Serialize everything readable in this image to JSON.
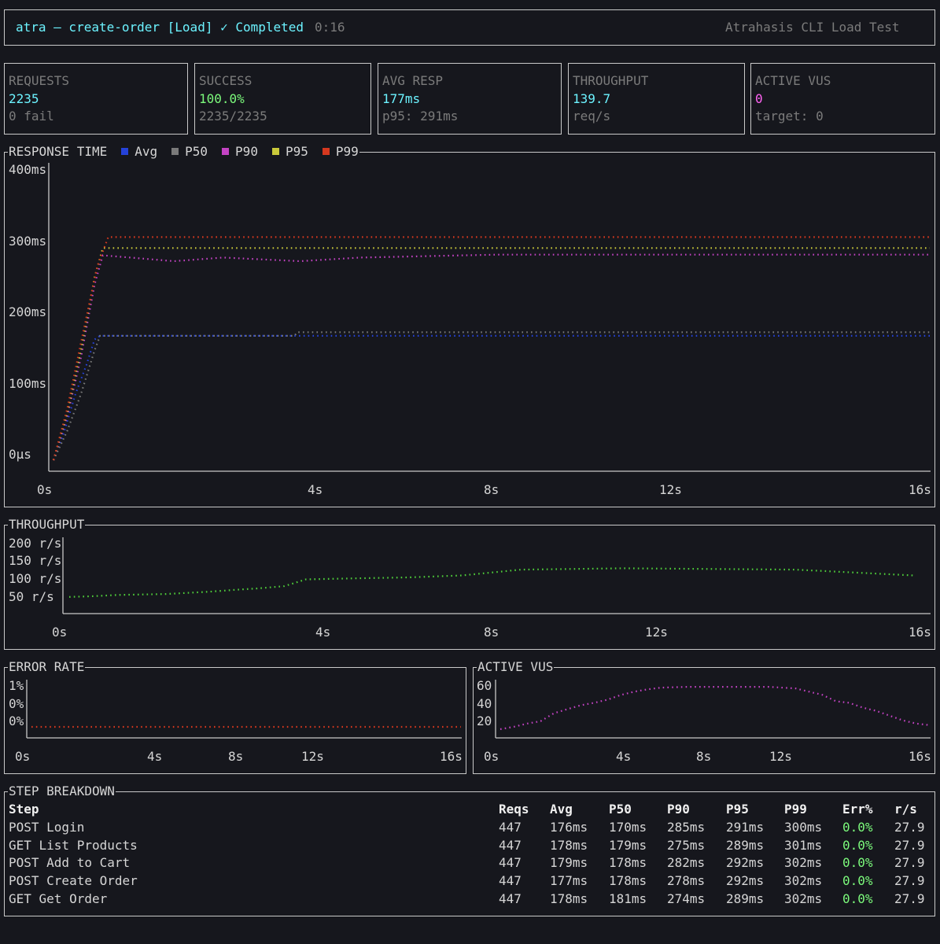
{
  "header": {
    "title": "atra — create-order [Load] ✓ Completed",
    "elapsed": "0:16",
    "app_name": "Atrahasis CLI Load Test"
  },
  "stats": [
    {
      "label": "REQUESTS",
      "value": "2235",
      "sub": "0 fail",
      "color": "#6cf3ff"
    },
    {
      "label": "SUCCESS",
      "value": "100.0%",
      "sub": "2235/2235",
      "color": "#7cfb7c"
    },
    {
      "label": "AVG RESP",
      "value": "177ms",
      "sub": "p95: 291ms",
      "color": "#6cf3ff"
    },
    {
      "label": "THROUGHPUT",
      "value": "139.7",
      "sub": "req/s",
      "color": "#6cf3ff"
    },
    {
      "label": "ACTIVE VUS",
      "value": "0",
      "sub": "target: 0",
      "color": "#ff63f2"
    }
  ],
  "response_time": {
    "title": "RESPONSE TIME",
    "legend": [
      {
        "name": "Avg",
        "color": "#2542d8"
      },
      {
        "name": "P50",
        "color": "#7a7a7a"
      },
      {
        "name": "P90",
        "color": "#c443c4"
      },
      {
        "name": "P95",
        "color": "#c9c93a"
      },
      {
        "name": "P99",
        "color": "#d5381f"
      }
    ],
    "yticks": [
      "400ms",
      "300ms",
      "200ms",
      "100ms",
      "0µs"
    ],
    "xticks": [
      "0s",
      "4s",
      "8s",
      "12s",
      "16s"
    ]
  },
  "throughput": {
    "title": "THROUGHPUT",
    "yticks": [
      "200 r/s",
      "150 r/s",
      "100 r/s",
      "50 r/s"
    ],
    "xticks": [
      "0s",
      "4s",
      "8s",
      "12s",
      "16s"
    ]
  },
  "error_rate": {
    "title": "ERROR RATE",
    "yticks": [
      "1%",
      "0%",
      "0%"
    ],
    "xticks": [
      "0s",
      "4s",
      "8s",
      "12s",
      "16s"
    ]
  },
  "active_vus": {
    "title": "ACTIVE VUS",
    "yticks": [
      "60",
      "40",
      "20"
    ],
    "xticks": [
      "0s",
      "4s",
      "8s",
      "12s",
      "16s"
    ]
  },
  "chart_data": [
    {
      "type": "line",
      "title": "RESPONSE TIME",
      "xlabel": "",
      "ylabel": "",
      "xlim": [
        0,
        16
      ],
      "ylim": [
        0,
        400
      ],
      "series": [
        {
          "name": "Avg",
          "color": "#2542d8",
          "points": [
            [
              0,
              0
            ],
            [
              0.2,
              40
            ],
            [
              0.4,
              90
            ],
            [
              0.6,
              130
            ],
            [
              0.75,
              165
            ],
            [
              0.85,
              170
            ],
            [
              4,
              170
            ],
            [
              8,
              170
            ],
            [
              16,
              170
            ]
          ]
        },
        {
          "name": "P50",
          "color": "#7a7a7a",
          "points": [
            [
              0,
              0
            ],
            [
              0.25,
              40
            ],
            [
              0.5,
              90
            ],
            [
              0.75,
              150
            ],
            [
              0.85,
              170
            ],
            [
              4.4,
              170
            ],
            [
              4.45,
              175
            ],
            [
              16,
              175
            ]
          ]
        },
        {
          "name": "P90",
          "color": "#c443c4",
          "points": [
            [
              0,
              0
            ],
            [
              0.25,
              60
            ],
            [
              0.5,
              140
            ],
            [
              0.75,
              240
            ],
            [
              0.9,
              280
            ],
            [
              1.4,
              277
            ],
            [
              2.2,
              272
            ],
            [
              3.1,
              277
            ],
            [
              4.5,
              272
            ],
            [
              5.6,
              277
            ],
            [
              8.1,
              281
            ],
            [
              16,
              281
            ]
          ]
        },
        {
          "name": "P95",
          "color": "#c9c93a",
          "points": [
            [
              0,
              0
            ],
            [
              0.25,
              65
            ],
            [
              0.5,
              150
            ],
            [
              0.75,
              250
            ],
            [
              0.9,
              290
            ],
            [
              16,
              290
            ]
          ]
        },
        {
          "name": "P99",
          "color": "#d5381f",
          "points": [
            [
              0,
              0
            ],
            [
              0.25,
              70
            ],
            [
              0.5,
              160
            ],
            [
              0.8,
              265
            ],
            [
              1.0,
              305
            ],
            [
              16,
              305
            ]
          ]
        }
      ]
    },
    {
      "type": "line",
      "title": "THROUGHPUT",
      "xlim": [
        0,
        16
      ],
      "ylim": [
        0,
        220
      ],
      "series": [
        {
          "name": "",
          "color": "#4fcf3a",
          "points": [
            [
              0,
              44
            ],
            [
              0.4,
              46
            ],
            [
              0.9,
              50
            ],
            [
              1.8,
              53
            ],
            [
              2.6,
              60
            ],
            [
              3.1,
              66
            ],
            [
              3.5,
              70
            ],
            [
              4.0,
              77
            ],
            [
              4.4,
              98
            ],
            [
              5.3,
              101
            ],
            [
              6.3,
              104
            ],
            [
              7.3,
              110
            ],
            [
              8.4,
              128
            ],
            [
              10.3,
              132
            ],
            [
              13.5,
              128
            ],
            [
              15.7,
              110
            ]
          ]
        }
      ]
    },
    {
      "type": "line",
      "title": "ERROR RATE",
      "xlim": [
        0,
        16
      ],
      "ylim": [
        0,
        1
      ],
      "series": [
        {
          "name": "",
          "color": "#d5381f",
          "points": [
            [
              0,
              0
            ],
            [
              16,
              0
            ]
          ]
        }
      ]
    },
    {
      "type": "line",
      "title": "ACTIVE VUS",
      "xlim": [
        0,
        16
      ],
      "ylim": [
        0,
        65
      ],
      "series": [
        {
          "name": "",
          "color": "#c443c4",
          "points": [
            [
              0,
              5
            ],
            [
              0.5,
              8
            ],
            [
              1,
              12
            ],
            [
              1.5,
              15
            ],
            [
              2,
              25
            ],
            [
              2.5,
              30
            ],
            [
              3,
              35
            ],
            [
              3.5,
              38
            ],
            [
              4,
              42
            ],
            [
              4.5,
              48
            ],
            [
              5,
              52
            ],
            [
              5.5,
              55
            ],
            [
              6,
              57
            ],
            [
              7,
              58
            ],
            [
              8,
              58
            ],
            [
              9,
              58
            ],
            [
              10,
              58
            ],
            [
              11,
              56
            ],
            [
              11.5,
              52
            ],
            [
              12,
              48
            ],
            [
              12.5,
              40
            ],
            [
              13,
              38
            ],
            [
              13.5,
              32
            ],
            [
              14,
              28
            ],
            [
              14.5,
              22
            ],
            [
              15,
              16
            ],
            [
              15.5,
              12
            ],
            [
              16,
              10
            ]
          ]
        }
      ]
    }
  ],
  "steps": {
    "title": "STEP BREAKDOWN",
    "columns": [
      "Step",
      "Reqs",
      "Avg",
      "P50",
      "P90",
      "P95",
      "P99",
      "Err%",
      "r/s"
    ],
    "rows": [
      [
        "POST Login",
        "447",
        "176ms",
        "170ms",
        "285ms",
        "291ms",
        "300ms",
        "0.0%",
        "27.9"
      ],
      [
        "GET List Products",
        "447",
        "178ms",
        "179ms",
        "275ms",
        "289ms",
        "301ms",
        "0.0%",
        "27.9"
      ],
      [
        "POST Add to Cart",
        "447",
        "179ms",
        "178ms",
        "282ms",
        "292ms",
        "302ms",
        "0.0%",
        "27.9"
      ],
      [
        "POST Create Order",
        "447",
        "177ms",
        "178ms",
        "278ms",
        "292ms",
        "302ms",
        "0.0%",
        "27.9"
      ],
      [
        "GET Get Order",
        "447",
        "178ms",
        "181ms",
        "274ms",
        "289ms",
        "302ms",
        "0.0%",
        "27.9"
      ]
    ]
  }
}
